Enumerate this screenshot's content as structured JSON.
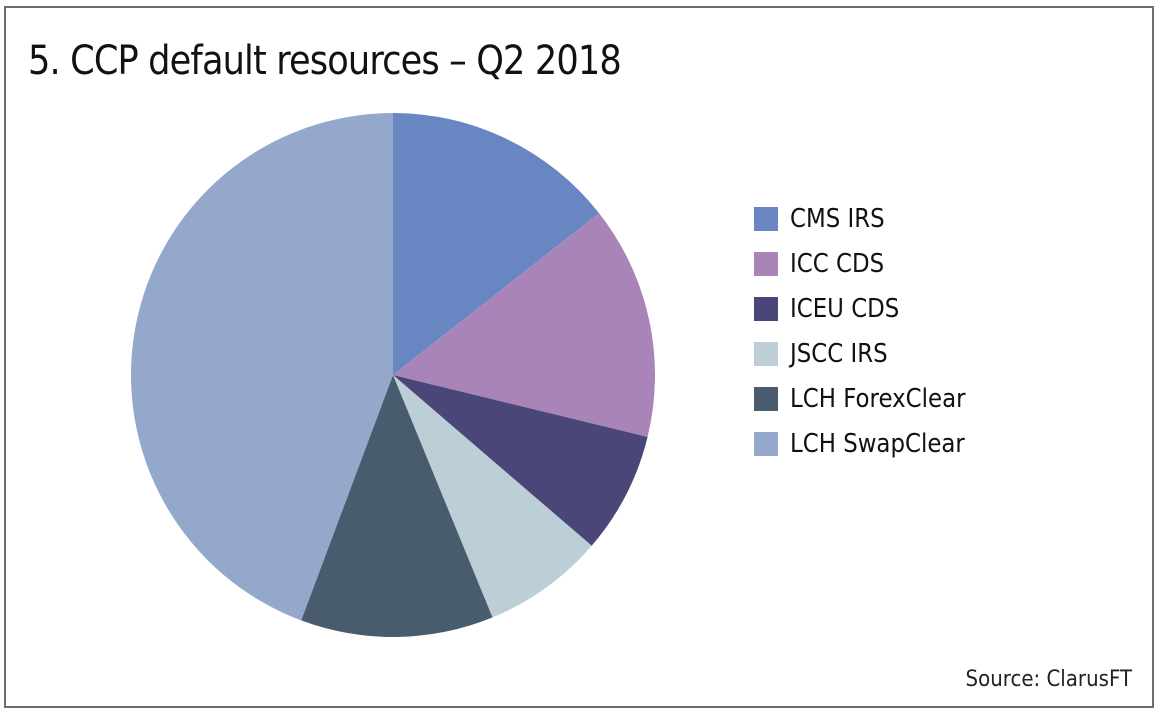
{
  "chart_data": {
    "type": "pie",
    "title": "5. CCP default resources – Q2 2018",
    "source": "Source: ClarusFT",
    "legend_position": "right",
    "units": "percent share (estimated)",
    "slices": [
      {
        "label": "CMS IRS",
        "value": 14.4,
        "color": "#6886c1"
      },
      {
        "label": "ICC CDS",
        "value": 14.4,
        "color": "#a984b8"
      },
      {
        "label": "ICEU CDS",
        "value": 7.5,
        "color": "#4a4778"
      },
      {
        "label": "JSCC IRS",
        "value": 7.5,
        "color": "#bccfd7"
      },
      {
        "label": "LCH ForexClear",
        "value": 11.9,
        "color": "#485c6e"
      },
      {
        "label": "LCH SwapClear",
        "value": 44.3,
        "color": "#93a8cb"
      }
    ]
  }
}
